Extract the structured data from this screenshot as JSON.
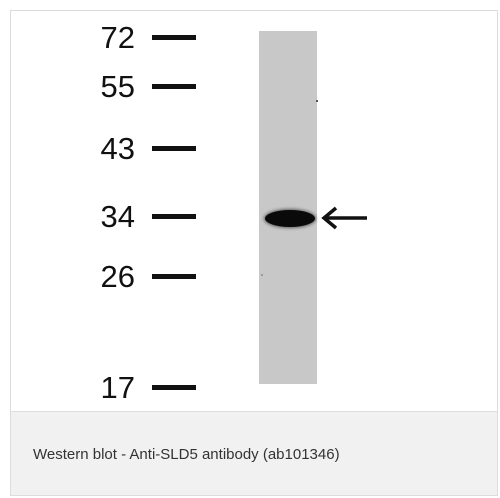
{
  "blot": {
    "markers": [
      "72",
      "55",
      "43",
      "34",
      "26",
      "17"
    ],
    "lane_color": "#c8c8c8",
    "band_color": "#0a0a0a",
    "arrow_icon": "left-arrow-icon"
  },
  "caption": {
    "text": "Western blot - Anti-SLD5 antibody (ab101346)"
  }
}
